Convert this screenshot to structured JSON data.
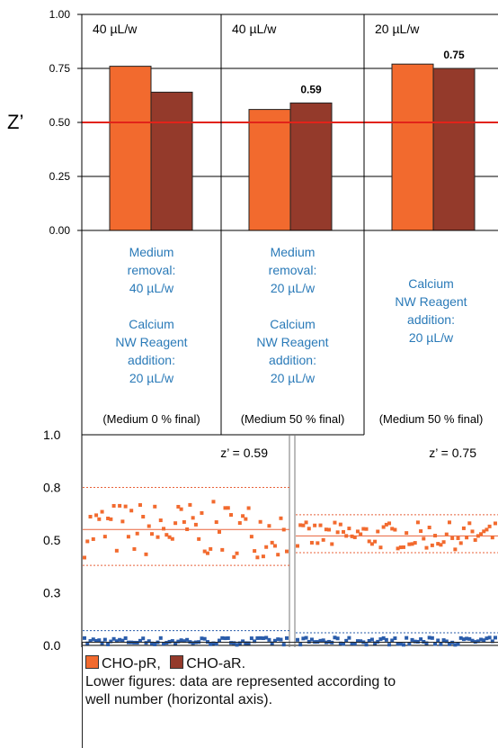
{
  "chart_data": [
    {
      "type": "bar",
      "ylabel": "Z’",
      "ylim": [
        0,
        1
      ],
      "yticks": [
        "0.00",
        "0.25",
        "0.50",
        "0.75",
        "1.00"
      ],
      "threshold": 0.5,
      "threshold_color": "#e2231a",
      "panels": [
        {
          "title": "40 µL/w",
          "values": [
            0.76,
            0.64
          ],
          "value_label": "",
          "conditions": [
            "Medium",
            "removal:",
            "40 µL/w",
            "",
            "Calcium",
            "NW Reagent",
            "addition:",
            "20 µL/w"
          ],
          "note": "(Medium 0 % final)"
        },
        {
          "title": "40 µL/w",
          "values": [
            0.56,
            0.59
          ],
          "value_label": "0.59",
          "conditions": [
            "Medium",
            "removal:",
            "20 µL/w",
            "",
            "Calcium",
            "NW Reagent",
            "addition:",
            "20 µL/w"
          ],
          "note": "(Medium 50 % final)"
        },
        {
          "title": "20 µL/w",
          "values": [
            0.77,
            0.75
          ],
          "value_label": "0.75",
          "conditions": [
            "Calcium",
            "NW Reagent",
            "addition:",
            "20 µL/w"
          ],
          "note": "(Medium 50 % final)"
        }
      ],
      "series": [
        {
          "name": "CHO-pR",
          "color": "#f26a2e"
        },
        {
          "name": "CHO-aR.",
          "color": "#943a2b"
        }
      ]
    },
    {
      "type": "scatter",
      "ylim": [
        0,
        1
      ],
      "yticks": [
        "0.0",
        "0.3",
        "0.5",
        "0.8",
        "1.0"
      ],
      "panels": [
        {
          "label": "z’ = 0.59",
          "pr_mean": 0.55,
          "pr_sd_lines": [
            0.38,
            0.75
          ],
          "ar_mean": 0.02,
          "ar_sd_line": 0.07
        },
        {
          "label": "z’ = 0.75",
          "pr_mean": 0.52,
          "pr_sd_lines": [
            0.44,
            0.62
          ],
          "ar_mean": 0.02,
          "ar_sd_line": 0.06
        }
      ],
      "series": [
        {
          "name": "CHO-pR",
          "color": "#f26a2e"
        },
        {
          "name": "CHO-aR.",
          "color": "#2a5caa"
        }
      ]
    }
  ],
  "legend": {
    "items": [
      {
        "label": "CHO-pR,",
        "color": "#f26a2e"
      },
      {
        "label": "CHO-aR.",
        "color": "#943a2b"
      }
    ],
    "caption_lines": [
      "Lower figures: data are represented according to",
      "well number (horizontal axis)."
    ]
  },
  "colors": {
    "condition_text": "#2a7ab8",
    "grid": "#000000",
    "dotted_ref": "#e8623a"
  }
}
